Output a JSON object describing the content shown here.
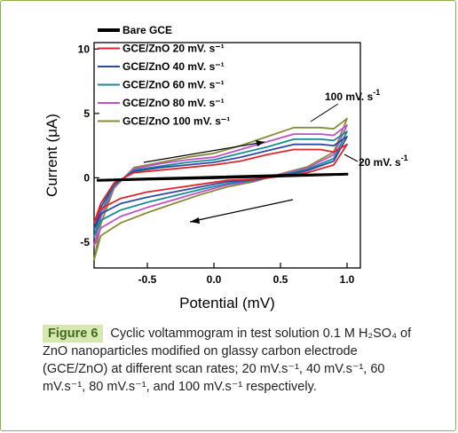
{
  "chart_data": {
    "type": "line",
    "xlabel": "Potential (mV)",
    "ylabel": "Current (μA)",
    "xlim": [
      -0.9,
      1.1
    ],
    "ylim": [
      -7,
      10.5
    ],
    "xticks": [
      {
        "v": -0.5,
        "label": "-0.5"
      },
      {
        "v": 0.0,
        "label": "0.0"
      },
      {
        "v": 0.5,
        "label": "0.5"
      },
      {
        "v": 1.0,
        "label": "1.0"
      }
    ],
    "yticks": [
      {
        "v": 10,
        "label": "10"
      },
      {
        "v": 5,
        "label": "5"
      },
      {
        "v": 0,
        "label": "0"
      },
      {
        "v": -5,
        "label": "-5"
      }
    ],
    "legend_position": "top-left",
    "series": [
      {
        "name": "Bare GCE",
        "color": "#000000",
        "forward": [
          [
            -0.88,
            -0.2
          ],
          [
            -0.5,
            -0.08
          ],
          [
            0.0,
            0.05
          ],
          [
            0.5,
            0.18
          ],
          [
            1.0,
            0.28
          ]
        ],
        "reverse": [
          [
            1.0,
            0.28
          ],
          [
            0.5,
            0.14
          ],
          [
            0.0,
            0.0
          ],
          [
            -0.5,
            -0.1
          ],
          [
            -0.88,
            -0.2
          ]
        ]
      },
      {
        "name": "GCE/ZnO 20 mV. s⁻¹",
        "color": "#e0242c",
        "forward": [
          [
            -0.9,
            -3.5
          ],
          [
            -0.85,
            -2.0
          ],
          [
            -0.75,
            -0.4
          ],
          [
            -0.6,
            0.4
          ],
          [
            -0.4,
            0.6
          ],
          [
            -0.2,
            0.8
          ],
          [
            0.0,
            1.0
          ],
          [
            0.2,
            1.3
          ],
          [
            0.4,
            1.8
          ],
          [
            0.6,
            2.2
          ],
          [
            0.8,
            2.2
          ],
          [
            0.9,
            2.0
          ],
          [
            1.0,
            2.6
          ]
        ],
        "reverse": [
          [
            1.0,
            2.6
          ],
          [
            0.9,
            1.0
          ],
          [
            0.7,
            0.4
          ],
          [
            0.5,
            0.1
          ],
          [
            0.3,
            -0.1
          ],
          [
            0.1,
            -0.2
          ],
          [
            -0.1,
            -0.5
          ],
          [
            -0.3,
            -0.8
          ],
          [
            -0.5,
            -1.1
          ],
          [
            -0.7,
            -1.6
          ],
          [
            -0.85,
            -2.4
          ],
          [
            -0.9,
            -3.5
          ]
        ]
      },
      {
        "name": "GCE/ZnO 40 mV. s⁻¹",
        "color": "#2c4aa0",
        "forward": [
          [
            -0.9,
            -4.0
          ],
          [
            -0.85,
            -2.3
          ],
          [
            -0.75,
            -0.5
          ],
          [
            -0.6,
            0.5
          ],
          [
            -0.4,
            0.8
          ],
          [
            -0.2,
            1.0
          ],
          [
            0.0,
            1.2
          ],
          [
            0.2,
            1.6
          ],
          [
            0.4,
            2.1
          ],
          [
            0.6,
            2.6
          ],
          [
            0.8,
            2.6
          ],
          [
            0.9,
            2.5
          ],
          [
            1.0,
            3.2
          ]
        ],
        "reverse": [
          [
            1.0,
            3.2
          ],
          [
            0.9,
            1.3
          ],
          [
            0.7,
            0.55
          ],
          [
            0.5,
            0.15
          ],
          [
            0.3,
            -0.15
          ],
          [
            0.1,
            -0.3
          ],
          [
            -0.1,
            -0.7
          ],
          [
            -0.3,
            -1.1
          ],
          [
            -0.5,
            -1.5
          ],
          [
            -0.7,
            -2.0
          ],
          [
            -0.85,
            -2.8
          ],
          [
            -0.9,
            -4.0
          ]
        ]
      },
      {
        "name": "GCE/ZnO 60 mV. s⁻¹",
        "color": "#1a8a9a",
        "forward": [
          [
            -0.9,
            -4.6
          ],
          [
            -0.85,
            -2.7
          ],
          [
            -0.75,
            -0.6
          ],
          [
            -0.6,
            0.6
          ],
          [
            -0.4,
            0.9
          ],
          [
            -0.2,
            1.2
          ],
          [
            0.0,
            1.4
          ],
          [
            0.2,
            1.9
          ],
          [
            0.4,
            2.4
          ],
          [
            0.6,
            3.0
          ],
          [
            0.8,
            3.0
          ],
          [
            0.9,
            2.9
          ],
          [
            1.0,
            3.6
          ]
        ],
        "reverse": [
          [
            1.0,
            3.6
          ],
          [
            0.9,
            1.5
          ],
          [
            0.7,
            0.65
          ],
          [
            0.5,
            0.2
          ],
          [
            0.3,
            -0.2
          ],
          [
            0.1,
            -0.45
          ],
          [
            -0.1,
            -0.9
          ],
          [
            -0.3,
            -1.4
          ],
          [
            -0.5,
            -1.9
          ],
          [
            -0.7,
            -2.5
          ],
          [
            -0.85,
            -3.3
          ],
          [
            -0.9,
            -4.6
          ]
        ]
      },
      {
        "name": "GCE/ZnO 80 mV. s⁻¹",
        "color": "#c050c8",
        "forward": [
          [
            -0.9,
            -5.3
          ],
          [
            -0.85,
            -3.1
          ],
          [
            -0.75,
            -0.7
          ],
          [
            -0.6,
            0.7
          ],
          [
            -0.4,
            1.1
          ],
          [
            -0.2,
            1.4
          ],
          [
            0.0,
            1.6
          ],
          [
            0.2,
            2.2
          ],
          [
            0.4,
            2.8
          ],
          [
            0.6,
            3.4
          ],
          [
            0.8,
            3.4
          ],
          [
            0.9,
            3.3
          ],
          [
            1.0,
            4.1
          ]
        ],
        "reverse": [
          [
            1.0,
            4.1
          ],
          [
            0.9,
            1.8
          ],
          [
            0.7,
            0.75
          ],
          [
            0.5,
            0.25
          ],
          [
            0.3,
            -0.25
          ],
          [
            0.1,
            -0.55
          ],
          [
            -0.1,
            -1.1
          ],
          [
            -0.3,
            -1.7
          ],
          [
            -0.5,
            -2.3
          ],
          [
            -0.7,
            -3.0
          ],
          [
            -0.85,
            -3.9
          ],
          [
            -0.9,
            -5.3
          ]
        ]
      },
      {
        "name": "GCE/ZnO 100 mV. s⁻¹",
        "color": "#8a8a3a",
        "forward": [
          [
            -0.9,
            -6.4
          ],
          [
            -0.85,
            -3.6
          ],
          [
            -0.75,
            -0.8
          ],
          [
            -0.6,
            0.8
          ],
          [
            -0.4,
            1.2
          ],
          [
            -0.2,
            1.6
          ],
          [
            0.0,
            1.9
          ],
          [
            0.2,
            2.5
          ],
          [
            0.4,
            3.2
          ],
          [
            0.6,
            3.9
          ],
          [
            0.8,
            3.9
          ],
          [
            0.9,
            3.8
          ],
          [
            1.0,
            4.6
          ]
        ],
        "reverse": [
          [
            1.0,
            4.6
          ],
          [
            0.9,
            2.0
          ],
          [
            0.7,
            0.85
          ],
          [
            0.5,
            0.3
          ],
          [
            0.3,
            -0.3
          ],
          [
            0.1,
            -0.7
          ],
          [
            -0.1,
            -1.3
          ],
          [
            -0.3,
            -2.0
          ],
          [
            -0.5,
            -2.7
          ],
          [
            -0.7,
            -3.5
          ],
          [
            -0.85,
            -4.5
          ],
          [
            -0.9,
            -6.4
          ]
        ]
      }
    ],
    "annotations": [
      {
        "text": "100 mV. s",
        "sup": "-1"
      },
      {
        "text": "20 mV. s",
        "sup": "-1"
      }
    ]
  },
  "caption": {
    "label": "Figure 6",
    "text": "Cyclic voltammogram in test solution 0.1 M H₂SO₄ of ZnO nanoparticles modified on glassy carbon electrode (GCE/ZnO) at different scan rates; 20 mV.s⁻¹, 40 mV.s⁻¹, 60 mV.s⁻¹, 80 mV.s⁻¹, and 100 mV.s⁻¹ respectively."
  }
}
